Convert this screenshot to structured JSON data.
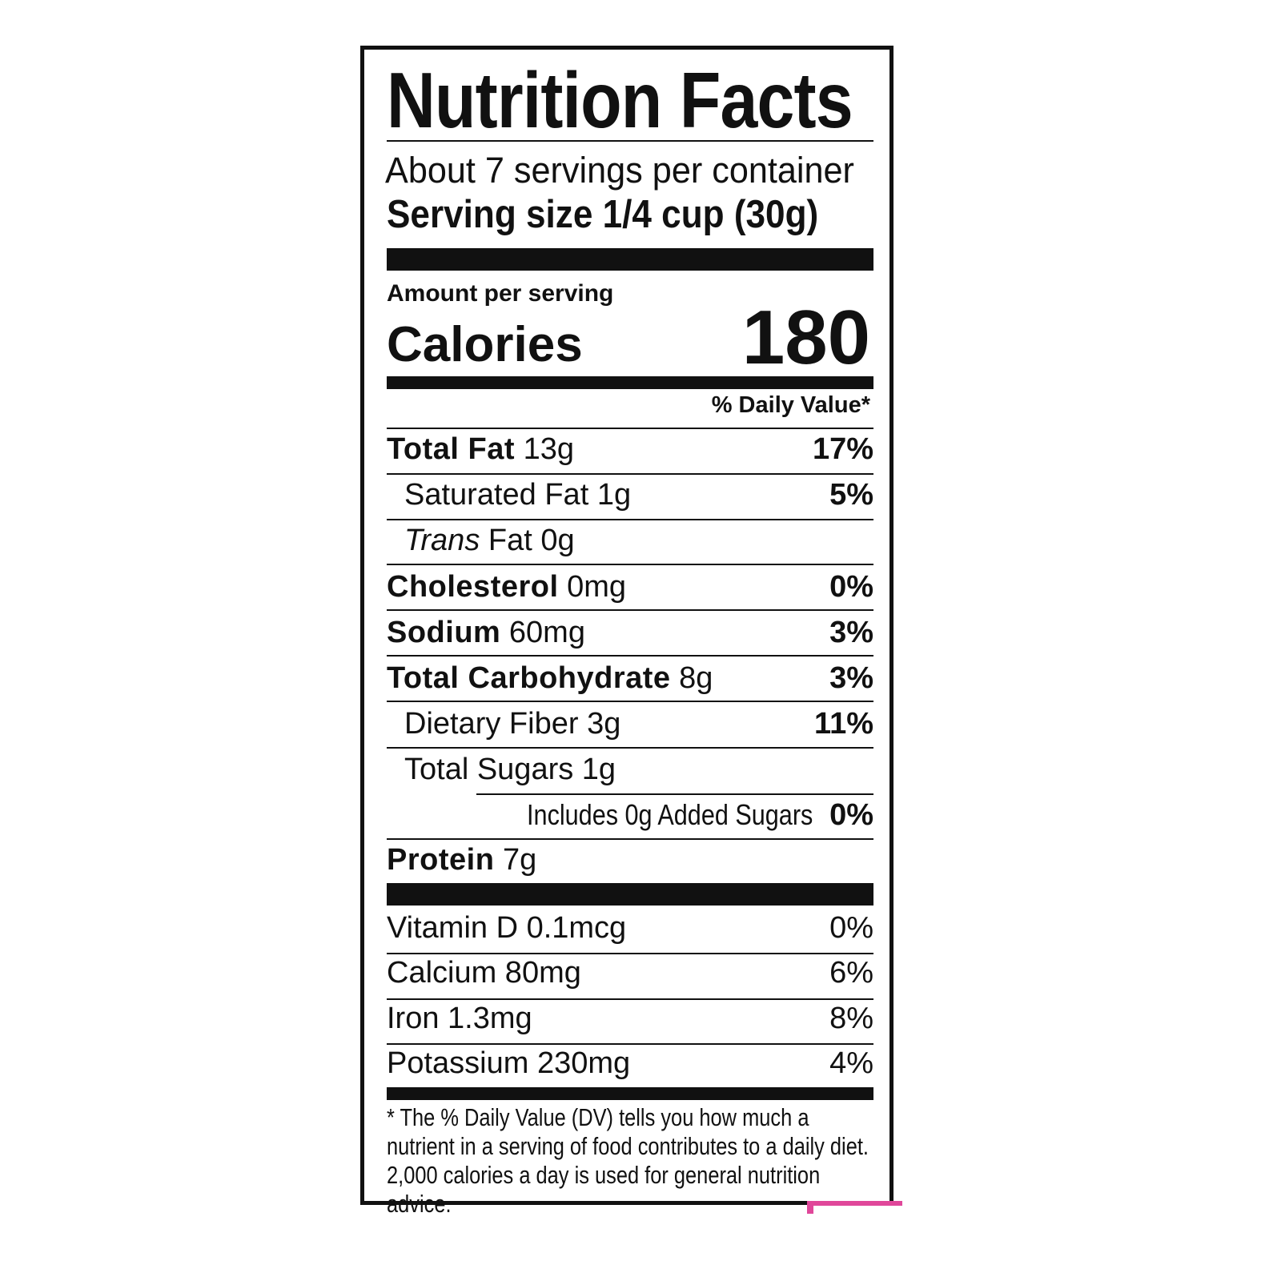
{
  "title": "Nutrition Facts",
  "servings_per_container": "About 7 servings per container",
  "serving_size": "Serving size 1/4 cup (30g)",
  "amount_per_serving": "Amount per serving",
  "calories": {
    "label": "Calories",
    "value": "180"
  },
  "daily_value_header": "% Daily Value*",
  "nutrients": [
    {
      "name": "Total Fat",
      "amount": "13g",
      "dv": "17%"
    },
    {
      "name": "Saturated Fat",
      "amount": "1g",
      "dv": "5%"
    },
    {
      "name": "Trans",
      "name_suffix": "Fat",
      "amount": "0g"
    },
    {
      "name": "Cholesterol",
      "amount": "0mg",
      "dv": "0%"
    },
    {
      "name": "Sodium",
      "amount": "60mg",
      "dv": "3%"
    },
    {
      "name": "Total Carbohydrate",
      "amount": "8g",
      "dv": "3%"
    },
    {
      "name": "Dietary Fiber",
      "amount": "3g",
      "dv": "11%"
    },
    {
      "name": "Total Sugars",
      "amount": "1g"
    },
    {
      "text": "Includes 0g Added Sugars",
      "dv": "0%"
    },
    {
      "name": "Protein",
      "amount": "7g"
    }
  ],
  "vitamins": [
    {
      "text": "Vitamin D 0.1mcg",
      "dv": "0%"
    },
    {
      "text": "Calcium 80mg",
      "dv": "6%"
    },
    {
      "text": "Iron 1.3mg",
      "dv": "8%"
    },
    {
      "text": "Potassium 230mg",
      "dv": "4%"
    }
  ],
  "footnote": "* The % Daily Value (DV) tells you how much a nutrient in a serving of food contributes to a daily diet. 2,000 calories a day is used for general nutrition advice.",
  "colors": {
    "ink": "#111111",
    "accent_mark": "#e0479a"
  }
}
